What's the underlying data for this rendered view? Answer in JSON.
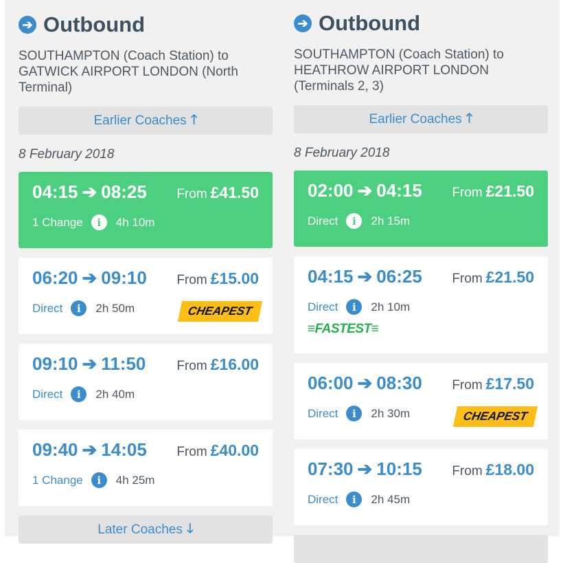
{
  "columns": [
    {
      "heading": "Outbound",
      "route": "SOUTHAMPTON (Coach Station) to GATWICK AIRPORT LONDON (North Terminal)",
      "earlier": "Earlier Coaches",
      "date": "8 February 2018",
      "later": "Later Coaches",
      "journeys": [
        {
          "depart": "04:15",
          "arrive": "08:25",
          "from": "From",
          "price": "£41.50",
          "changes": "1 Change",
          "duration": "4h 10m",
          "selected": true
        },
        {
          "depart": "06:20",
          "arrive": "09:10",
          "from": "From",
          "price": "£15.00",
          "changes": "Direct",
          "duration": "2h 50m",
          "badge": "CHEAPEST"
        },
        {
          "depart": "09:10",
          "arrive": "11:50",
          "from": "From",
          "price": "£16.00",
          "changes": "Direct",
          "duration": "2h 40m"
        },
        {
          "depart": "09:40",
          "arrive": "14:05",
          "from": "From",
          "price": "£40.00",
          "changes": "1 Change",
          "duration": "4h 25m"
        }
      ]
    },
    {
      "heading": "Outbound",
      "route": "SOUTHAMPTON (Coach Station) to HEATHROW AIRPORT LONDON (Terminals 2, 3)",
      "earlier": "Earlier Coaches",
      "date": "8 February 2018",
      "journeys": [
        {
          "depart": "02:00",
          "arrive": "04:15",
          "from": "From",
          "price": "£21.50",
          "changes": "Direct",
          "duration": "2h 15m",
          "selected": true
        },
        {
          "depart": "04:15",
          "arrive": "06:25",
          "from": "From",
          "price": "£21.50",
          "changes": "Direct",
          "duration": "2h 10m",
          "fastest": "≡FASTEST≡"
        },
        {
          "depart": "06:00",
          "arrive": "08:30",
          "from": "From",
          "price": "£17.50",
          "changes": "Direct",
          "duration": "2h 30m",
          "badge": "CHEAPEST"
        },
        {
          "depart": "07:30",
          "arrive": "10:15",
          "from": "From",
          "price": "£18.00",
          "changes": "Direct",
          "duration": "2h 45m"
        }
      ]
    }
  ],
  "colors": {
    "accent": "#3b8ccc",
    "selected": "#4dcf80",
    "cheapest": "#fbbd17",
    "fastest": "#23b04e"
  }
}
